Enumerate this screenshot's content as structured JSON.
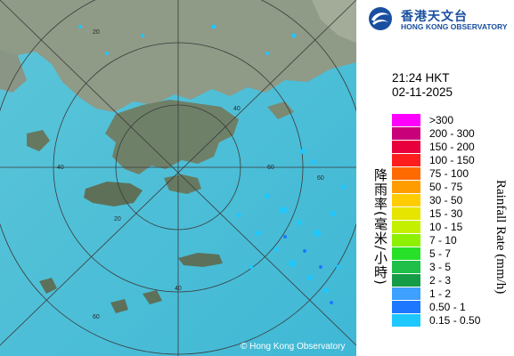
{
  "logo": {
    "zh": "香港天文台",
    "en": "HONG KONG OBSERVATORY",
    "icon": "hko-logo-icon"
  },
  "timestamp": {
    "time": "21:24 HKT",
    "date": "02-11-2025"
  },
  "legend": {
    "zh_title": "降雨率(毫米/小時)",
    "en_title": "Rainfall Rate (mm/h)",
    "items": [
      {
        "label": ">300",
        "color": "#ff00ff"
      },
      {
        "label": "200 - 300",
        "color": "#c8007a"
      },
      {
        "label": "150 - 200",
        "color": "#e8003c"
      },
      {
        "label": "100 - 150",
        "color": "#ff1e1e"
      },
      {
        "label": "75 - 100",
        "color": "#ff6a00"
      },
      {
        "label": "50 - 75",
        "color": "#ff9d00"
      },
      {
        "label": "30 - 50",
        "color": "#ffcc00"
      },
      {
        "label": "15 - 30",
        "color": "#e5e500"
      },
      {
        "label": "10 - 15",
        "color": "#c4f000"
      },
      {
        "label": "7 - 10",
        "color": "#8cf000"
      },
      {
        "label": "5 - 7",
        "color": "#28e028"
      },
      {
        "label": "3 - 5",
        "color": "#1fbf4a"
      },
      {
        "label": "2 - 3",
        "color": "#169c46"
      },
      {
        "label": "1 - 2",
        "color": "#3ea0ff"
      },
      {
        "label": "0.50 - 1",
        "color": "#1e78ff"
      },
      {
        "label": "0.15 - 0.50",
        "color": "#1ec8ff"
      }
    ]
  },
  "map": {
    "range_rings": [
      "20",
      "40",
      "60",
      "20",
      "40",
      "60",
      "40",
      "60"
    ],
    "copyright": "© Hong Kong Observatory"
  }
}
